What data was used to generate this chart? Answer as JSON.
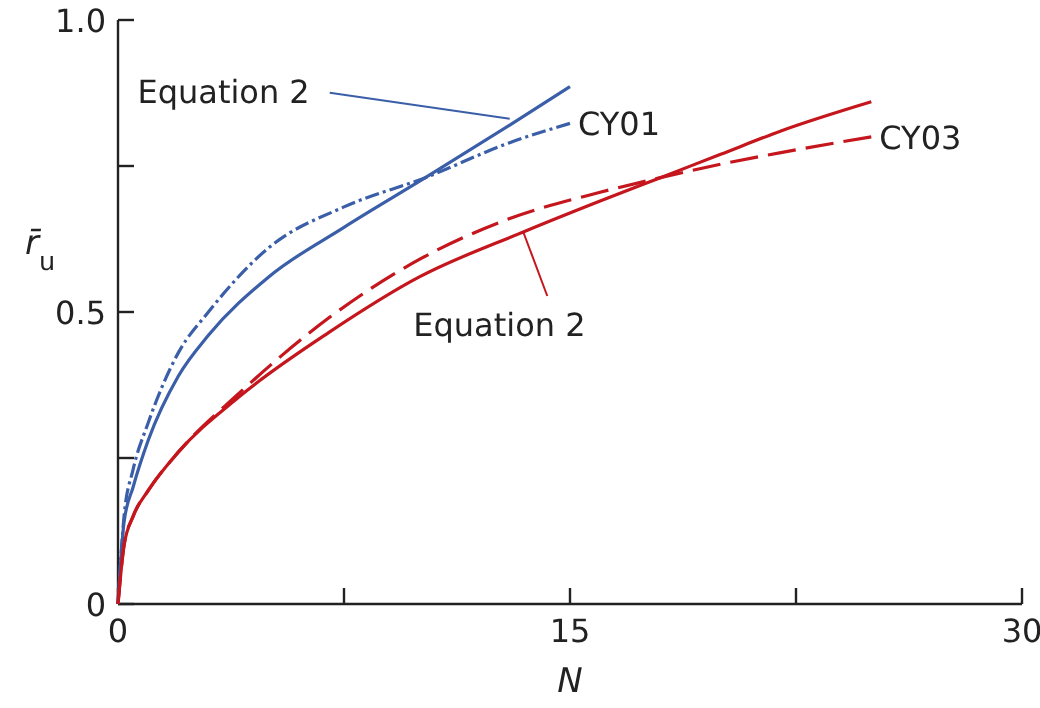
{
  "chart_data": {
    "type": "line",
    "xlabel": "N",
    "ylabel": "r̄$_{u}$",
    "xlim": [
      0,
      30
    ],
    "xticks": [
      0,
      {
        "value": 7.5,
        "label": null
      },
      15,
      {
        "value": 22.5,
        "label": null
      },
      30
    ],
    "ylim": [
      0,
      1.0
    ],
    "yticks": [
      0,
      {
        "value": 0.25,
        "label": null
      },
      0.5,
      {
        "value": 0.75,
        "label": null
      },
      {
        "value": 1.0,
        "label": "1.0"
      }
    ],
    "grid": false,
    "marker": "none",
    "series": [
      {
        "color": "#3a5ea8",
        "line_style": "solid",
        "x": [
          0,
          0.2,
          0.5,
          1,
          2,
          3,
          5,
          7.5,
          10.2,
          13,
          15
        ],
        "values": [
          0,
          0.14,
          0.2,
          0.28,
          0.39,
          0.46,
          0.56,
          0.645,
          0.73,
          0.82,
          0.886
        ]
      },
      {
        "name": "CY01",
        "color": "#3a5ea8",
        "line_style": "dotted",
        "x": [
          0,
          0.2,
          0.5,
          1,
          2,
          3,
          5,
          7.5,
          10.2,
          13,
          15
        ],
        "values": [
          0,
          0.15,
          0.23,
          0.31,
          0.43,
          0.5,
          0.61,
          0.68,
          0.73,
          0.79,
          0.823
        ]
      },
      {
        "color": "#c4161c",
        "line_style": "solid",
        "x": [
          0,
          0.2,
          0.5,
          1,
          2,
          4,
          7,
          10,
          13.45,
          16,
          18,
          20,
          22,
          25
        ],
        "values": [
          0,
          0.1,
          0.15,
          0.194,
          0.26,
          0.354,
          0.465,
          0.56,
          0.637,
          0.69,
          0.73,
          0.77,
          0.81,
          0.86
        ]
      },
      {
        "name": "CY03",
        "color": "#c4161c",
        "line_style": "dashed",
        "x": [
          0,
          0.2,
          0.5,
          1,
          2,
          4,
          7,
          10,
          13,
          16,
          18,
          20,
          22,
          25
        ],
        "values": [
          0,
          0.1,
          0.15,
          0.194,
          0.26,
          0.36,
          0.49,
          0.59,
          0.66,
          0.705,
          0.73,
          0.753,
          0.773,
          0.8
        ]
      }
    ],
    "annotations": [
      {
        "text": "Equation 2",
        "x": 13,
        "y": 0.831
      },
      {
        "text": "Equation 2",
        "x": 13.45,
        "y": 0.637
      }
    ]
  }
}
